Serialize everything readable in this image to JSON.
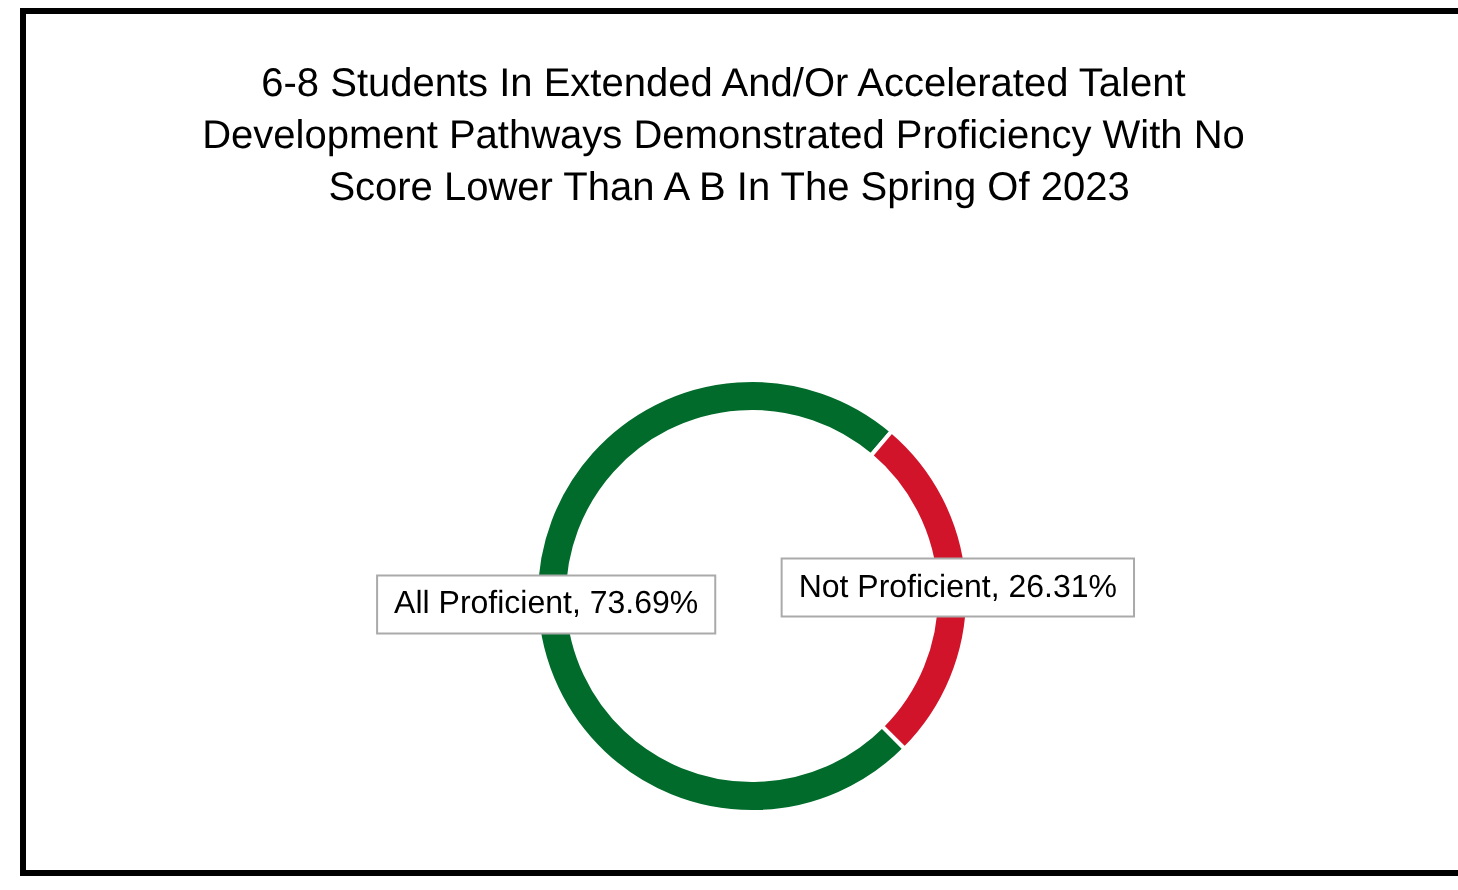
{
  "chart_data": {
    "type": "donut",
    "title": "6-8 Students In Extended And/Or Accelerated Talent Development Pathways Demonstrated Proficiency With No Score Lower Than A B In The Spring Of 2023",
    "categories": [
      "All Proficient",
      "Not Proficient"
    ],
    "values": [
      73.69,
      26.31
    ],
    "colors": [
      "#006b2b",
      "#d2142b"
    ],
    "value_labels": [
      "73.69%",
      "26.31%"
    ],
    "legend": false
  }
}
